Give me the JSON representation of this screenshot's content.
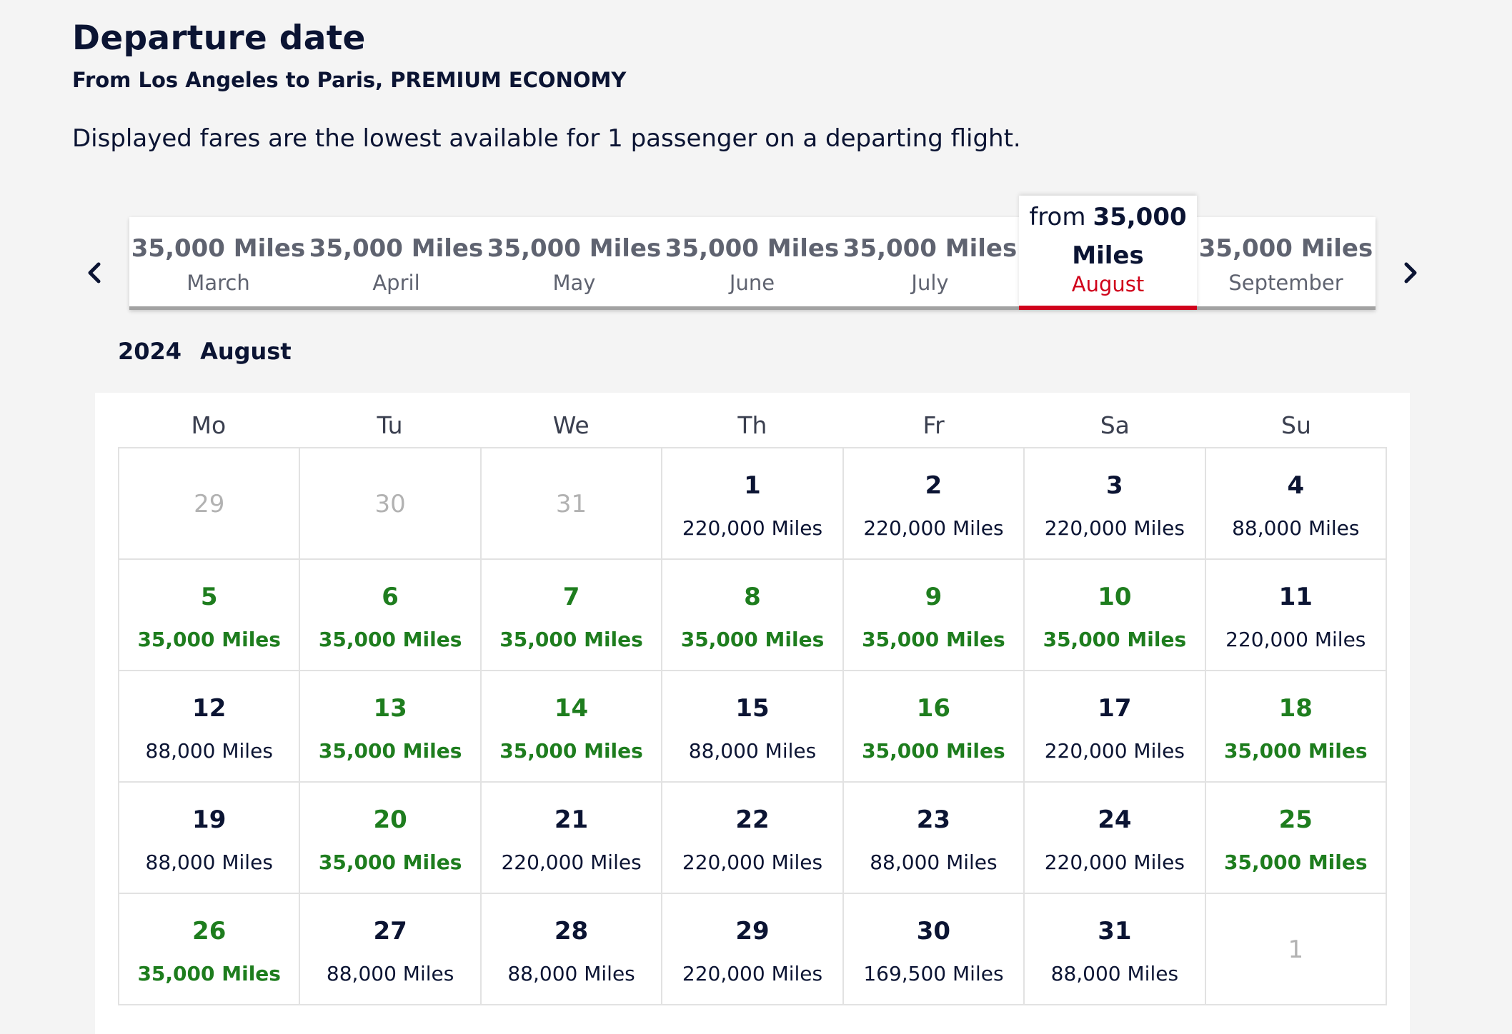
{
  "header": {
    "title": "Departure date",
    "route": "From Los Angeles to Paris, PREMIUM ECONOMY",
    "disclaimer": "Displayed fares are the lowest available for 1 passenger on a departing flight."
  },
  "months": [
    {
      "price": "35,000 Miles",
      "name": "March"
    },
    {
      "price": "35,000 Miles",
      "name": "April"
    },
    {
      "price": "35,000 Miles",
      "name": "May"
    },
    {
      "price": "35,000 Miles",
      "name": "June"
    },
    {
      "price": "35,000 Miles",
      "name": "July"
    },
    {
      "from": "from",
      "price_value": "35,000",
      "price_unit": "Miles",
      "name": "August",
      "selected": true
    },
    {
      "price": "35,000 Miles",
      "name": "September"
    }
  ],
  "calendar": {
    "year": "2024",
    "month": "August",
    "weekdays": [
      "Mo",
      "Tu",
      "We",
      "Th",
      "Fr",
      "Sa",
      "Su"
    ],
    "weeks": [
      [
        {
          "day": "29",
          "muted": true
        },
        {
          "day": "30",
          "muted": true
        },
        {
          "day": "31",
          "muted": true
        },
        {
          "day": "1",
          "price": "220,000 Miles"
        },
        {
          "day": "2",
          "price": "220,000 Miles"
        },
        {
          "day": "3",
          "price": "220,000 Miles"
        },
        {
          "day": "4",
          "price": "88,000 Miles"
        }
      ],
      [
        {
          "day": "5",
          "price": "35,000 Miles",
          "lowest": true
        },
        {
          "day": "6",
          "price": "35,000 Miles",
          "lowest": true
        },
        {
          "day": "7",
          "price": "35,000 Miles",
          "lowest": true
        },
        {
          "day": "8",
          "price": "35,000 Miles",
          "lowest": true
        },
        {
          "day": "9",
          "price": "35,000 Miles",
          "lowest": true
        },
        {
          "day": "10",
          "price": "35,000 Miles",
          "lowest": true
        },
        {
          "day": "11",
          "price": "220,000 Miles"
        }
      ],
      [
        {
          "day": "12",
          "price": "88,000 Miles"
        },
        {
          "day": "13",
          "price": "35,000 Miles",
          "lowest": true
        },
        {
          "day": "14",
          "price": "35,000 Miles",
          "lowest": true
        },
        {
          "day": "15",
          "price": "88,000 Miles"
        },
        {
          "day": "16",
          "price": "35,000 Miles",
          "lowest": true
        },
        {
          "day": "17",
          "price": "220,000 Miles"
        },
        {
          "day": "18",
          "price": "35,000 Miles",
          "lowest": true
        }
      ],
      [
        {
          "day": "19",
          "price": "88,000 Miles"
        },
        {
          "day": "20",
          "price": "35,000 Miles",
          "lowest": true
        },
        {
          "day": "21",
          "price": "220,000 Miles"
        },
        {
          "day": "22",
          "price": "220,000 Miles"
        },
        {
          "day": "23",
          "price": "88,000 Miles"
        },
        {
          "day": "24",
          "price": "220,000 Miles"
        },
        {
          "day": "25",
          "price": "35,000 Miles",
          "lowest": true
        }
      ],
      [
        {
          "day": "26",
          "price": "35,000 Miles",
          "lowest": true
        },
        {
          "day": "27",
          "price": "88,000 Miles"
        },
        {
          "day": "28",
          "price": "88,000 Miles"
        },
        {
          "day": "29",
          "price": "220,000 Miles"
        },
        {
          "day": "30",
          "price": "169,500 Miles"
        },
        {
          "day": "31",
          "price": "88,000 Miles"
        },
        {
          "day": "1",
          "muted": true
        }
      ]
    ]
  },
  "icons": {
    "prev": "chevron-left-icon",
    "next": "chevron-right-icon"
  },
  "colors": {
    "text": "#0b1433",
    "lowest_fare": "#1e7d1e",
    "selected_accent": "#d0021b",
    "muted": "#b2b2b2"
  }
}
